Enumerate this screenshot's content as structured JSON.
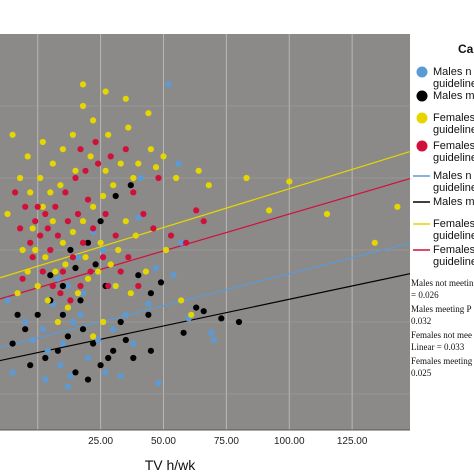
{
  "chart_data": {
    "type": "scatter",
    "title": "",
    "xlabel": "TV h/wk",
    "ylabel": "",
    "xlim": [
      -15,
      148
    ],
    "ylim": [
      -10,
      100
    ],
    "xticks": [
      25,
      50,
      100,
      125
    ],
    "xtick_labels": [
      "25.00",
      "50.00",
      "100.00",
      "125.00"
    ],
    "extra_xtick_labels": [
      {
        "x": 75,
        "label": "75.00"
      }
    ],
    "grid": true,
    "legend_placement": "right",
    "legend_title": "Ca",
    "legend_entries": [
      {
        "text": "Males n",
        "text2": "guideline",
        "color": "#5b9bd5",
        "kind": "marker"
      },
      {
        "text": "Males m",
        "text2": "",
        "color": "#000000",
        "kind": "marker"
      },
      {
        "text": "Females",
        "text2": "guideline",
        "color": "#e6d600",
        "kind": "marker"
      },
      {
        "text": "Females",
        "text2": "guideline",
        "color": "#d0103a",
        "kind": "marker"
      },
      {
        "text": "Males n",
        "text2": "guideline",
        "color": "#5b9bd5",
        "kind": "line"
      },
      {
        "text": "Males m",
        "text2": "",
        "color": "#000000",
        "kind": "line"
      },
      {
        "text": "Females",
        "text2": "guideline",
        "color": "#e6d600",
        "kind": "line"
      },
      {
        "text": "Females",
        "text2": "guideline",
        "color": "#d0103a",
        "kind": "line"
      }
    ],
    "r2_notes": [
      "Males not meetin",
      "= 0.026",
      "Males meeting P",
      "0.032",
      "Females not mee",
      "Linear = 0.033",
      "Females meeting",
      "0.025"
    ],
    "series": [
      {
        "name": "Males not meeting guidelines",
        "color": "#5b9bd5",
        "fit": {
          "intercept": 15.6,
          "slope": 0.178
        },
        "points": [
          [
            52,
            86
          ],
          [
            56,
            64
          ],
          [
            41,
            60
          ],
          [
            57,
            42
          ],
          [
            40,
            49
          ],
          [
            22,
            45
          ],
          [
            12,
            30
          ],
          [
            16,
            38
          ],
          [
            18,
            28
          ],
          [
            30,
            18
          ],
          [
            35,
            22
          ],
          [
            44,
            25
          ],
          [
            47,
            35
          ],
          [
            54,
            33
          ],
          [
            60,
            21
          ],
          [
            69,
            17
          ],
          [
            70,
            15
          ],
          [
            4,
            12
          ],
          [
            9,
            8
          ],
          [
            13,
            5
          ],
          [
            -5,
            20
          ],
          [
            -2,
            15
          ],
          [
            2,
            18
          ],
          [
            6,
            25
          ],
          [
            8,
            32
          ],
          [
            10,
            14
          ],
          [
            14,
            20
          ],
          [
            17,
            22
          ],
          [
            20,
            10
          ],
          [
            24,
            15
          ],
          [
            27,
            6
          ],
          [
            33,
            5
          ],
          [
            48,
            3
          ],
          [
            12,
            2
          ],
          [
            3,
            4
          ],
          [
            -10,
            6
          ],
          [
            -12,
            26
          ],
          [
            26,
            40
          ],
          [
            30,
            30
          ],
          [
            38,
            14
          ]
        ]
      },
      {
        "name": "Males meeting PA guidelines",
        "color": "#000000",
        "fit": {
          "intercept": 11.5,
          "slope": 0.148
        },
        "points": [
          [
            37,
            58
          ],
          [
            31,
            55
          ],
          [
            25,
            48
          ],
          [
            20,
            42
          ],
          [
            15,
            35
          ],
          [
            10,
            30
          ],
          [
            5,
            26
          ],
          [
            0,
            22
          ],
          [
            -5,
            18
          ],
          [
            -10,
            14
          ],
          [
            40,
            33
          ],
          [
            45,
            28
          ],
          [
            49,
            31
          ],
          [
            44,
            22
          ],
          [
            63,
            24
          ],
          [
            66,
            23
          ],
          [
            73,
            21
          ],
          [
            80,
            20
          ],
          [
            58,
            17
          ],
          [
            35,
            15
          ],
          [
            30,
            12
          ],
          [
            28,
            10
          ],
          [
            22,
            14
          ],
          [
            18,
            18
          ],
          [
            12,
            16
          ],
          [
            8,
            12
          ],
          [
            3,
            10
          ],
          [
            -3,
            8
          ],
          [
            -8,
            22
          ],
          [
            15,
            6
          ],
          [
            20,
            4
          ],
          [
            25,
            8
          ],
          [
            33,
            20
          ],
          [
            27,
            30
          ],
          [
            17,
            26
          ],
          [
            10,
            22
          ],
          [
            5,
            33
          ],
          [
            45,
            12
          ],
          [
            38,
            10
          ],
          [
            13,
            40
          ],
          [
            23,
            36
          ]
        ]
      },
      {
        "name": "Females not meeting PA guidelines",
        "color": "#e6d600",
        "fit": {
          "intercept": 35.5,
          "slope": 0.215
        },
        "points": [
          [
            45,
            68
          ],
          [
            50,
            66
          ],
          [
            36,
            74
          ],
          [
            28,
            72
          ],
          [
            22,
            76
          ],
          [
            18,
            80
          ],
          [
            14,
            72
          ],
          [
            10,
            68
          ],
          [
            6,
            64
          ],
          [
            2,
            70
          ],
          [
            -4,
            66
          ],
          [
            -10,
            72
          ],
          [
            40,
            64
          ],
          [
            47,
            63
          ],
          [
            55,
            60
          ],
          [
            64,
            62
          ],
          [
            68,
            58
          ],
          [
            83,
            60
          ],
          [
            100,
            59
          ],
          [
            134,
            42
          ],
          [
            143,
            52
          ],
          [
            92,
            51
          ],
          [
            115,
            50
          ],
          [
            30,
            58
          ],
          [
            26,
            55
          ],
          [
            22,
            52
          ],
          [
            18,
            48
          ],
          [
            14,
            45
          ],
          [
            10,
            42
          ],
          [
            6,
            48
          ],
          [
            2,
            52
          ],
          [
            -2,
            46
          ],
          [
            -6,
            40
          ],
          [
            -12,
            50
          ],
          [
            35,
            48
          ],
          [
            39,
            44
          ],
          [
            32,
            40
          ],
          [
            24,
            34
          ],
          [
            20,
            32
          ],
          [
            16,
            28
          ],
          [
            12,
            24
          ],
          [
            8,
            20
          ],
          [
            4,
            26
          ],
          [
            0,
            30
          ],
          [
            -4,
            34
          ],
          [
            -8,
            28
          ],
          [
            27,
            62
          ],
          [
            33,
            64
          ],
          [
            38,
            60
          ],
          [
            21,
            66
          ],
          [
            15,
            62
          ],
          [
            9,
            58
          ],
          [
            5,
            56
          ],
          [
            1,
            60
          ],
          [
            -3,
            56
          ],
          [
            -7,
            60
          ],
          [
            25,
            42
          ],
          [
            29,
            36
          ],
          [
            19,
            38
          ],
          [
            11,
            36
          ],
          [
            7,
            34
          ],
          [
            3,
            38
          ],
          [
            -1,
            40
          ],
          [
            31,
            30
          ],
          [
            37,
            28
          ],
          [
            43,
            34
          ],
          [
            51,
            40
          ],
          [
            57,
            26
          ],
          [
            61,
            22
          ],
          [
            26,
            20
          ],
          [
            22,
            16
          ],
          [
            44,
            78
          ],
          [
            35,
            82
          ],
          [
            27,
            84
          ],
          [
            18,
            86
          ]
        ]
      },
      {
        "name": "Females meeting PA guidelines",
        "color": "#d0103a",
        "fit": {
          "intercept": 29.5,
          "slope": 0.205
        },
        "points": [
          [
            35,
            68
          ],
          [
            29,
            66
          ],
          [
            24,
            64
          ],
          [
            19,
            62
          ],
          [
            15,
            60
          ],
          [
            11,
            56
          ],
          [
            7,
            52
          ],
          [
            3,
            50
          ],
          [
            -1,
            48
          ],
          [
            -5,
            52
          ],
          [
            -9,
            56
          ],
          [
            38,
            56
          ],
          [
            42,
            50
          ],
          [
            46,
            46
          ],
          [
            53,
            44
          ],
          [
            59,
            42
          ],
          [
            63,
            51
          ],
          [
            66,
            48
          ],
          [
            48,
            60
          ],
          [
            27,
            50
          ],
          [
            22,
            46
          ],
          [
            18,
            42
          ],
          [
            14,
            38
          ],
          [
            10,
            34
          ],
          [
            6,
            30
          ],
          [
            2,
            34
          ],
          [
            -2,
            38
          ],
          [
            -6,
            32
          ],
          [
            31,
            44
          ],
          [
            26,
            38
          ],
          [
            21,
            34
          ],
          [
            17,
            30
          ],
          [
            13,
            26
          ],
          [
            9,
            28
          ],
          [
            5,
            40
          ],
          [
            1,
            44
          ],
          [
            -3,
            42
          ],
          [
            -7,
            46
          ],
          [
            33,
            34
          ],
          [
            28,
            30
          ],
          [
            20,
            54
          ],
          [
            16,
            50
          ],
          [
            12,
            48
          ],
          [
            8,
            44
          ],
          [
            4,
            46
          ],
          [
            0,
            52
          ],
          [
            23,
            70
          ],
          [
            17,
            68
          ],
          [
            36,
            38
          ],
          [
            40,
            30
          ]
        ]
      }
    ]
  }
}
